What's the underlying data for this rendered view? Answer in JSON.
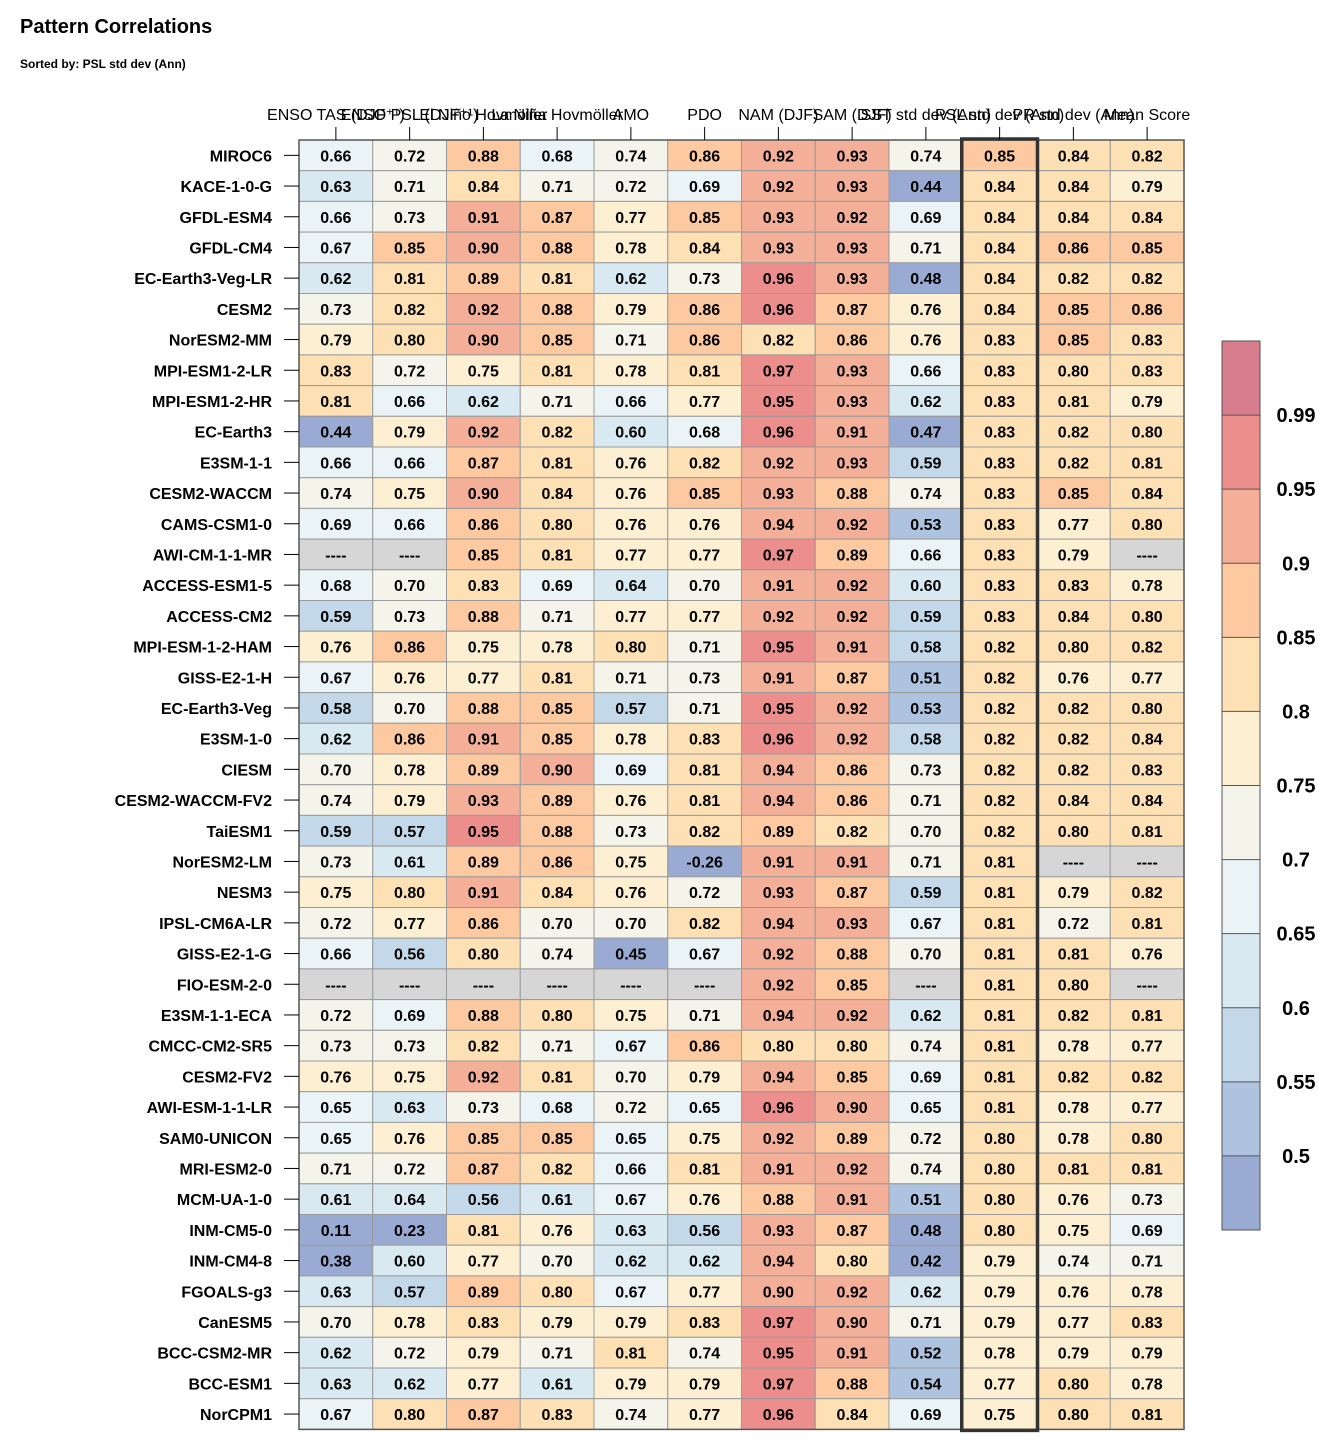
{
  "chart_data": {
    "type": "heatmap",
    "title": "Pattern Correlations",
    "subtitle": "Sorted by: PSL std dev (Ann)",
    "columns": [
      "ENSO TAS (DJF⁺¹)",
      "ENSO PSL (DJF⁺¹)",
      "El Niño Hovmöller",
      "La Niña Hovmöller",
      "AMO",
      "PDO",
      "NAM (DJF)",
      "SAM (DJF)",
      "SST std dev (Ann)",
      "PSL std dev (Ann)",
      "PR std dev (Ann)",
      "Mean Score"
    ],
    "highlighted_column": 9,
    "missing_text": "----",
    "rows": [
      "MIROC6",
      "KACE-1-0-G",
      "GFDL-ESM4",
      "GFDL-CM4",
      "EC-Earth3-Veg-LR",
      "CESM2",
      "NorESM2-MM",
      "MPI-ESM1-2-LR",
      "MPI-ESM1-2-HR",
      "EC-Earth3",
      "E3SM-1-1",
      "CESM2-WACCM",
      "CAMS-CSM1-0",
      "AWI-CM-1-1-MR",
      "ACCESS-ESM1-5",
      "ACCESS-CM2",
      "MPI-ESM-1-2-HAM",
      "GISS-E2-1-H",
      "EC-Earth3-Veg",
      "E3SM-1-0",
      "CIESM",
      "CESM2-WACCM-FV2",
      "TaiESM1",
      "NorESM2-LM",
      "NESM3",
      "IPSL-CM6A-LR",
      "GISS-E2-1-G",
      "FIO-ESM-2-0",
      "E3SM-1-1-ECA",
      "CMCC-CM2-SR5",
      "CESM2-FV2",
      "AWI-ESM-1-1-LR",
      "SAM0-UNICON",
      "MRI-ESM2-0",
      "MCM-UA-1-0",
      "INM-CM5-0",
      "INM-CM4-8",
      "FGOALS-g3",
      "CanESM5",
      "BCC-CSM2-MR",
      "BCC-ESM1",
      "NorCPM1"
    ],
    "values": [
      [
        0.66,
        0.72,
        0.88,
        0.68,
        0.74,
        0.86,
        0.92,
        0.93,
        0.74,
        0.85,
        0.84,
        0.82
      ],
      [
        0.63,
        0.71,
        0.84,
        0.71,
        0.72,
        0.69,
        0.92,
        0.93,
        0.44,
        0.84,
        0.84,
        0.79
      ],
      [
        0.66,
        0.73,
        0.91,
        0.87,
        0.77,
        0.85,
        0.93,
        0.92,
        0.69,
        0.84,
        0.84,
        0.84
      ],
      [
        0.67,
        0.85,
        0.9,
        0.88,
        0.78,
        0.84,
        0.93,
        0.93,
        0.71,
        0.84,
        0.86,
        0.85
      ],
      [
        0.62,
        0.81,
        0.89,
        0.81,
        0.62,
        0.73,
        0.96,
        0.93,
        0.48,
        0.84,
        0.82,
        0.82
      ],
      [
        0.73,
        0.82,
        0.92,
        0.88,
        0.79,
        0.86,
        0.96,
        0.87,
        0.76,
        0.84,
        0.85,
        0.86
      ],
      [
        0.79,
        0.8,
        0.9,
        0.85,
        0.71,
        0.86,
        0.82,
        0.86,
        0.76,
        0.83,
        0.85,
        0.83
      ],
      [
        0.83,
        0.72,
        0.75,
        0.81,
        0.78,
        0.81,
        0.97,
        0.93,
        0.66,
        0.83,
        0.8,
        0.83
      ],
      [
        0.81,
        0.66,
        0.62,
        0.71,
        0.66,
        0.77,
        0.95,
        0.93,
        0.62,
        0.83,
        0.81,
        0.79
      ],
      [
        0.44,
        0.79,
        0.92,
        0.82,
        0.6,
        0.68,
        0.96,
        0.91,
        0.47,
        0.83,
        0.82,
        0.8
      ],
      [
        0.66,
        0.66,
        0.87,
        0.81,
        0.76,
        0.82,
        0.92,
        0.93,
        0.59,
        0.83,
        0.82,
        0.81
      ],
      [
        0.74,
        0.75,
        0.9,
        0.84,
        0.76,
        0.85,
        0.93,
        0.88,
        0.74,
        0.83,
        0.85,
        0.84
      ],
      [
        0.69,
        0.66,
        0.86,
        0.8,
        0.76,
        0.76,
        0.94,
        0.92,
        0.53,
        0.83,
        0.77,
        0.8
      ],
      [
        null,
        null,
        0.85,
        0.81,
        0.77,
        0.77,
        0.97,
        0.89,
        0.66,
        0.83,
        0.79,
        null
      ],
      [
        0.68,
        0.7,
        0.83,
        0.69,
        0.64,
        0.7,
        0.91,
        0.92,
        0.6,
        0.83,
        0.83,
        0.78
      ],
      [
        0.59,
        0.73,
        0.88,
        0.71,
        0.77,
        0.77,
        0.92,
        0.92,
        0.59,
        0.83,
        0.84,
        0.8
      ],
      [
        0.76,
        0.86,
        0.75,
        0.78,
        0.8,
        0.71,
        0.95,
        0.91,
        0.58,
        0.82,
        0.8,
        0.82
      ],
      [
        0.67,
        0.76,
        0.77,
        0.81,
        0.71,
        0.73,
        0.91,
        0.87,
        0.51,
        0.82,
        0.76,
        0.77
      ],
      [
        0.58,
        0.7,
        0.88,
        0.85,
        0.57,
        0.71,
        0.95,
        0.92,
        0.53,
        0.82,
        0.82,
        0.8
      ],
      [
        0.62,
        0.86,
        0.91,
        0.85,
        0.78,
        0.83,
        0.96,
        0.92,
        0.58,
        0.82,
        0.82,
        0.84
      ],
      [
        0.7,
        0.78,
        0.89,
        0.9,
        0.69,
        0.81,
        0.94,
        0.86,
        0.73,
        0.82,
        0.82,
        0.83
      ],
      [
        0.74,
        0.79,
        0.93,
        0.89,
        0.76,
        0.81,
        0.94,
        0.86,
        0.71,
        0.82,
        0.84,
        0.84
      ],
      [
        0.59,
        0.57,
        0.95,
        0.88,
        0.73,
        0.82,
        0.89,
        0.82,
        0.7,
        0.82,
        0.8,
        0.81
      ],
      [
        0.73,
        0.61,
        0.89,
        0.86,
        0.75,
        -0.26,
        0.91,
        0.91,
        0.71,
        0.81,
        null,
        null
      ],
      [
        0.75,
        0.8,
        0.91,
        0.84,
        0.76,
        0.72,
        0.93,
        0.87,
        0.59,
        0.81,
        0.79,
        0.82
      ],
      [
        0.72,
        0.77,
        0.86,
        0.7,
        0.7,
        0.82,
        0.94,
        0.93,
        0.67,
        0.81,
        0.72,
        0.81
      ],
      [
        0.66,
        0.56,
        0.8,
        0.74,
        0.45,
        0.67,
        0.92,
        0.88,
        0.7,
        0.81,
        0.81,
        0.76
      ],
      [
        null,
        null,
        null,
        null,
        null,
        null,
        0.92,
        0.85,
        null,
        0.81,
        0.8,
        null
      ],
      [
        0.72,
        0.69,
        0.88,
        0.8,
        0.75,
        0.71,
        0.94,
        0.92,
        0.62,
        0.81,
        0.82,
        0.81
      ],
      [
        0.73,
        0.73,
        0.82,
        0.71,
        0.67,
        0.86,
        0.8,
        0.8,
        0.74,
        0.81,
        0.78,
        0.77
      ],
      [
        0.76,
        0.75,
        0.92,
        0.81,
        0.7,
        0.79,
        0.94,
        0.85,
        0.69,
        0.81,
        0.82,
        0.82
      ],
      [
        0.65,
        0.63,
        0.73,
        0.68,
        0.72,
        0.65,
        0.96,
        0.9,
        0.65,
        0.81,
        0.78,
        0.77
      ],
      [
        0.65,
        0.76,
        0.85,
        0.85,
        0.65,
        0.75,
        0.92,
        0.89,
        0.72,
        0.8,
        0.78,
        0.8
      ],
      [
        0.71,
        0.72,
        0.87,
        0.82,
        0.66,
        0.81,
        0.91,
        0.92,
        0.74,
        0.8,
        0.81,
        0.81
      ],
      [
        0.61,
        0.64,
        0.56,
        0.61,
        0.67,
        0.76,
        0.88,
        0.91,
        0.51,
        0.8,
        0.76,
        0.73
      ],
      [
        0.11,
        0.23,
        0.81,
        0.76,
        0.63,
        0.56,
        0.93,
        0.87,
        0.48,
        0.8,
        0.75,
        0.69
      ],
      [
        0.38,
        0.6,
        0.77,
        0.7,
        0.62,
        0.62,
        0.94,
        0.8,
        0.42,
        0.79,
        0.74,
        0.71
      ],
      [
        0.63,
        0.57,
        0.89,
        0.8,
        0.67,
        0.77,
        0.9,
        0.92,
        0.62,
        0.79,
        0.76,
        0.78
      ],
      [
        0.7,
        0.78,
        0.83,
        0.79,
        0.79,
        0.83,
        0.97,
        0.9,
        0.71,
        0.79,
        0.77,
        0.83
      ],
      [
        0.62,
        0.72,
        0.79,
        0.71,
        0.81,
        0.74,
        0.95,
        0.91,
        0.52,
        0.78,
        0.79,
        0.79
      ],
      [
        0.63,
        0.62,
        0.77,
        0.61,
        0.79,
        0.79,
        0.97,
        0.88,
        0.54,
        0.77,
        0.8,
        0.78
      ],
      [
        0.67,
        0.8,
        0.87,
        0.83,
        0.74,
        0.77,
        0.96,
        0.84,
        0.69,
        0.75,
        0.8,
        0.81
      ]
    ],
    "colorbar": {
      "levels": [
        0.5,
        0.55,
        0.6,
        0.65,
        0.7,
        0.75,
        0.8,
        0.85,
        0.9,
        0.95,
        0.99
      ],
      "tick_labels": [
        "0.5",
        "0.55",
        "0.6",
        "0.65",
        "0.7",
        "0.75",
        "0.8",
        "0.85",
        "0.9",
        "0.95",
        "0.99"
      ],
      "colors": [
        "#9aabd3",
        "#aec3e0",
        "#c3d9ea",
        "#d8e9f1",
        "#eaf4f6",
        "#f4f4eb",
        "#fdf0d2",
        "#fde1b5",
        "#fcc9a0",
        "#f4af98",
        "#eb8e8c",
        "#d77d8d"
      ],
      "missing_color": "#d6d6d6"
    }
  }
}
